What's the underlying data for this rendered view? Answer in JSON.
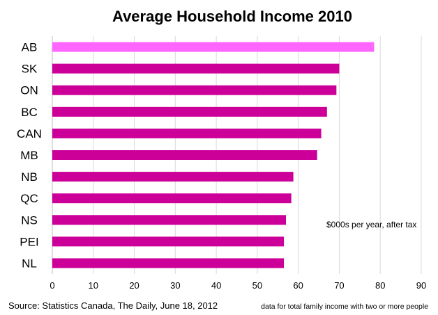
{
  "chart_data": {
    "type": "bar",
    "orientation": "horizontal",
    "title": "Average Household  Income  2010",
    "categories": [
      "AB",
      "SK",
      "ON",
      "BC",
      "CAN",
      "MB",
      "NB",
      "QC",
      "NS",
      "PEI",
      "NL"
    ],
    "values": [
      78.5,
      70,
      69.3,
      67,
      65.6,
      64.6,
      58.8,
      58.3,
      57,
      56.5,
      56.5
    ],
    "highlight_category": "AB",
    "colors": {
      "bar": "#cc0099",
      "highlight": "#ff66ff"
    },
    "xlim": [
      0,
      90
    ],
    "xticks": [
      0,
      10,
      20,
      30,
      40,
      50,
      60,
      70,
      80,
      90
    ],
    "grid": "vertical",
    "annotation": "$000s per year, after tax"
  },
  "footer": {
    "source": "Source: Statistics Canada, The Daily, June 18, 2012",
    "note": "data for total family income with  two  or more people"
  }
}
